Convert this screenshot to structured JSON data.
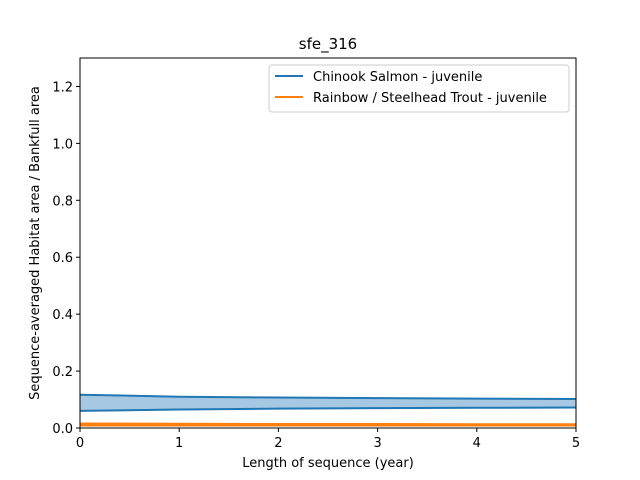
{
  "chart_data": {
    "type": "area",
    "title": "sfe_316",
    "xlabel": "Length of sequence (year)",
    "ylabel": "Sequence-averaged Habitat area / Bankfull area",
    "xlim": [
      0,
      5
    ],
    "ylim": [
      0,
      1.3
    ],
    "xticks": [
      "0",
      "1",
      "2",
      "3",
      "4",
      "5"
    ],
    "yticks": [
      "0.0",
      "0.2",
      "0.4",
      "0.6",
      "0.8",
      "1.0",
      "1.2"
    ],
    "grid": false,
    "legend_position": "top-right",
    "series": [
      {
        "name": "Chinook Salmon - juvenile",
        "color": "#1f77b4",
        "fill_color": "#a6c8e2",
        "x": [
          0,
          1,
          2,
          3,
          4,
          5
        ],
        "upper": [
          0.117,
          0.11,
          0.107,
          0.105,
          0.103,
          0.102
        ],
        "lower": [
          0.06,
          0.065,
          0.068,
          0.07,
          0.071,
          0.072
        ]
      },
      {
        "name": "Rainbow / Steelhead Trout - juvenile",
        "color": "#ff7f0e",
        "fill_color": "#ffbf86",
        "x": [
          0,
          1,
          2,
          3,
          4,
          5
        ],
        "upper": [
          0.016,
          0.015,
          0.014,
          0.014,
          0.013,
          0.013
        ],
        "lower": [
          0.009,
          0.009,
          0.009,
          0.009,
          0.009,
          0.009
        ]
      }
    ]
  }
}
